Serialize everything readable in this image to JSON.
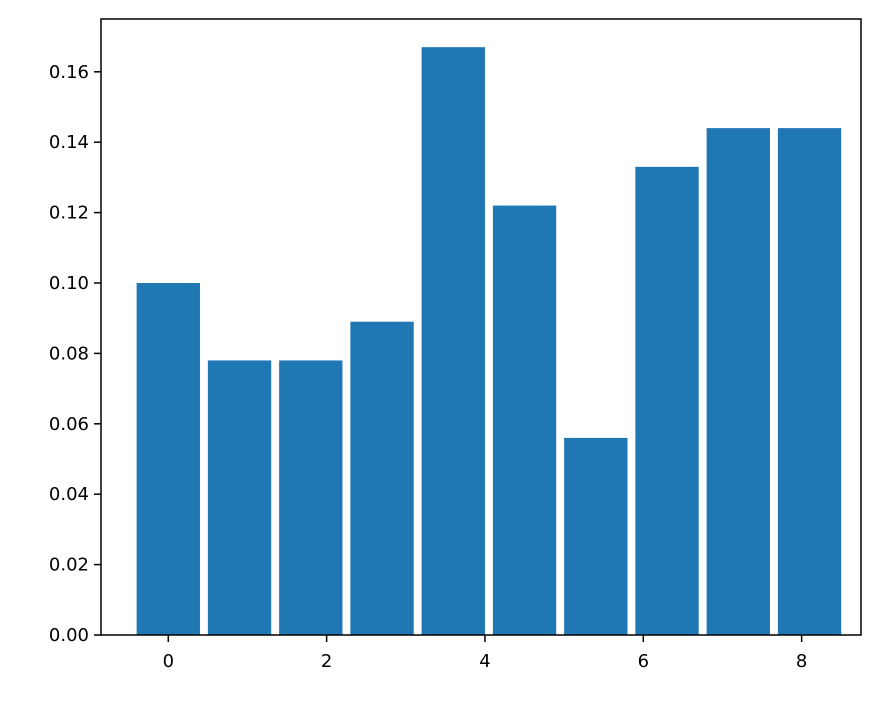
{
  "chart_data": {
    "type": "bar",
    "color": "#1f77b4",
    "x": [
      0,
      0.9,
      1.8,
      2.7,
      3.6,
      4.5,
      5.4,
      6.3,
      7.2,
      8.1
    ],
    "values": [
      0.1,
      0.078,
      0.078,
      0.089,
      0.167,
      0.122,
      0.056,
      0.133,
      0.144,
      0.144
    ],
    "xlim": [
      -0.85,
      8.75
    ],
    "xticks": [
      0,
      2,
      4,
      6,
      8
    ],
    "ylim": [
      0,
      0.175
    ],
    "yticks": [
      {
        "value": 0,
        "label": "0.00"
      },
      {
        "value": 0.02,
        "label": "0.02"
      },
      {
        "value": 0.04,
        "label": "0.04"
      },
      {
        "value": 0.06,
        "label": "0.06"
      },
      {
        "value": 0.08,
        "label": "0.08"
      },
      {
        "value": 0.1,
        "label": "0.10"
      },
      {
        "value": 0.12,
        "label": "0.12"
      },
      {
        "value": 0.14,
        "label": "0.14"
      },
      {
        "value": 0.16,
        "label": "0.16"
      }
    ],
    "grid": false
  }
}
